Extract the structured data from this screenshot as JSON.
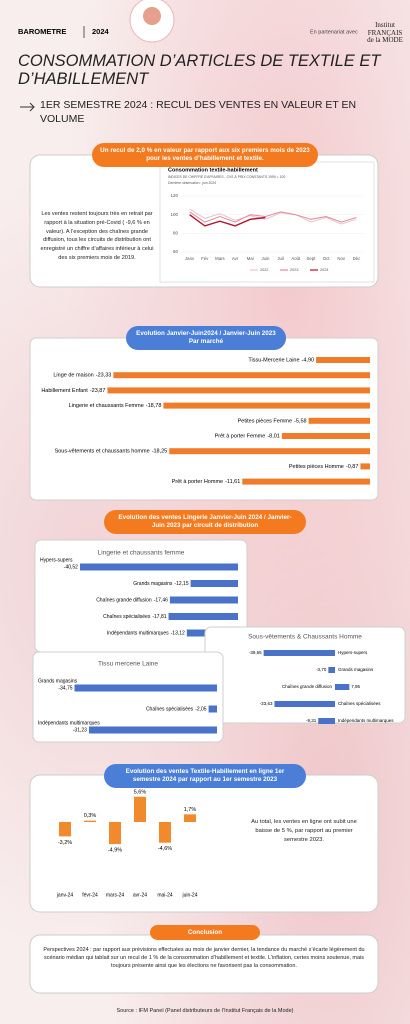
{
  "header": {
    "label": "BAROMETRE",
    "year": "2024",
    "partner_intro": "En partenariat avec",
    "partner_logo": "Institut FRANÇAIS de la MODE",
    "title": "CONSOMMATION D’ARTICLES DE TEXTILE ET D’HABILLEMENT",
    "subtitle": "1ER SEMESTRE 2024 : RECUL DES VENTES EN VALEUR ET EN VOLUME"
  },
  "summary": {
    "banner": "Un recul de 2,0 % en valeur par rapport aux six premiers mois de 2023 pour les ventes d’habillement et textile.",
    "text": "Les ventes restent toujours très en retrait par rapport à la situation pré-Covid ( -9,6 % en valeur). A l’exception des chaînes grande diffusion, tous les circuits de distribution ont enregistré un chiffre d’affaires inférieur à celui des six premiers mois de 2019."
  },
  "distribution_banner": "Evolution des ventes Lingerie Janvier-Juin 2024 / Janvier-Juin 2023 par circuit de distribution",
  "online_note": "Au total, les ventes en ligne ont subit une baisse de 5 %, par rapport au premier semestre 2023.",
  "conclusion": {
    "title": "Conclusion",
    "text": "Perspectives 2024 : par rapport aux prévisions effectuées au mois de janvier dernier, la tendance du marché s’écarte légèrement du scénario médian qui tablait sur un recul de 1 % de la consommation d’habillement et textile. L’inflation, certes moins soutenue, mais toujours présente ainsi que les élections ne favorisent pas la consommation."
  },
  "source": "Source : IFM Panel (Panel distributeurs de l’Institut Français de la Mode)",
  "chart_data": [
    {
      "type": "line",
      "title": "Consommation textile-habillement",
      "subtitle": "INDICES DE CHIFFRE D’AFFAIRES - CVS À PRIX CONSTANTS 1990 = 100",
      "note": "Dernière observation : juin 2024",
      "categories": [
        "Janv",
        "Fév",
        "Mars",
        "Avr",
        "Mai",
        "Juin",
        "Juil",
        "Août",
        "Sept",
        "Oct",
        "Nov",
        "Déc"
      ],
      "ylim": [
        60,
        120
      ],
      "yticks": [
        60,
        80,
        100,
        120
      ],
      "grid": true,
      "series": [
        {
          "name": "2022",
          "color": "#e8c4cc",
          "values": [
            106,
            96,
            101,
            94,
            99,
            95,
            102,
            100,
            92,
            97,
            90,
            95
          ]
        },
        {
          "name": "2023",
          "color": "#e48a9c",
          "values": [
            103,
            92,
            98,
            92,
            100,
            98,
            103,
            100,
            95,
            98,
            92,
            97
          ]
        },
        {
          "name": "2024",
          "color": "#b3122e",
          "values": [
            100,
            88,
            93,
            88,
            95,
            97,
            null,
            null,
            null,
            null,
            null,
            null
          ]
        }
      ]
    },
    {
      "type": "bar",
      "title": "Evolution Janvier-Juin2024 / Janvier-Juin 2023 Par marché",
      "color": "#f07c2a",
      "categories": [
        "Tissu-Mercerie Laine",
        "Linge de maison",
        "Habillement Enfant",
        "Lingerie et chaussants Femme",
        "Petites pièces Femme",
        "Prêt à porter Femme",
        "Sous-vêtements et chaussants homme",
        "Petites pièces Homme",
        "Prêt à porter Homme"
      ],
      "values": [
        -4.9,
        -23.33,
        -23.87,
        -18.78,
        -5.58,
        -8.01,
        -18.25,
        -0.87,
        -11.61
      ],
      "value_labels": [
        "-4,90",
        "-23,33",
        "-23,87",
        "-18,78",
        "-5,58",
        "-8,01",
        "-18,25",
        "-0,87",
        "-11,61"
      ]
    },
    {
      "type": "bar",
      "title": "Lingerie et chaussants femme",
      "color": "#4a72c8",
      "categories": [
        "Hypers-supers",
        "Grands magasins",
        "Chaînes grande diffusion",
        "Chaînes spécialisées",
        "Indépendants multimarques"
      ],
      "values": [
        -40.52,
        -12.15,
        -17.46,
        -17.81,
        -13.12
      ],
      "value_labels": [
        "-40,52",
        "-12,15",
        "-17,46",
        "-17,81",
        "-13,12"
      ]
    },
    {
      "type": "bar",
      "title": "Sous-vêtements & Chaussants Homme",
      "color": "#4a72c8",
      "categories": [
        "Hypers-supers",
        "Grands magasins",
        "Chaînes grande diffusion",
        "Chaînes spécialisées",
        "Indépendants multimarques"
      ],
      "values": [
        -39.65,
        -3.7,
        7.95,
        -33.63,
        -9.31
      ],
      "value_labels": [
        "-39,65",
        "-3,70",
        "7,95",
        "-33,63",
        "-9,31"
      ]
    },
    {
      "type": "bar",
      "title": "Tissu mercerie Laine",
      "color": "#4a72c8",
      "categories": [
        "Grands magasins",
        "Chaînes spécialisées",
        "Indépendants multimarques"
      ],
      "values": [
        -34.75,
        -2.05,
        -31.23
      ],
      "value_labels": [
        "-34,75",
        "-2,05",
        "-31,23"
      ]
    },
    {
      "type": "column",
      "title": "Evolution des ventes Textile-Habillement en ligne 1er semestre 2024 par rapport au 1er semestre 2023",
      "color": "#f08a2c",
      "categories": [
        "janv-24",
        "févr-24",
        "mars-24",
        "avr-24",
        "mai-24",
        "juin-24"
      ],
      "values": [
        -3.2,
        0.3,
        -4.9,
        5.6,
        -4.6,
        1.7
      ],
      "value_labels": [
        "-3,2%",
        "0,3%",
        "-4,9%",
        "5,6%",
        "-4,6%",
        "1,7%"
      ]
    }
  ]
}
